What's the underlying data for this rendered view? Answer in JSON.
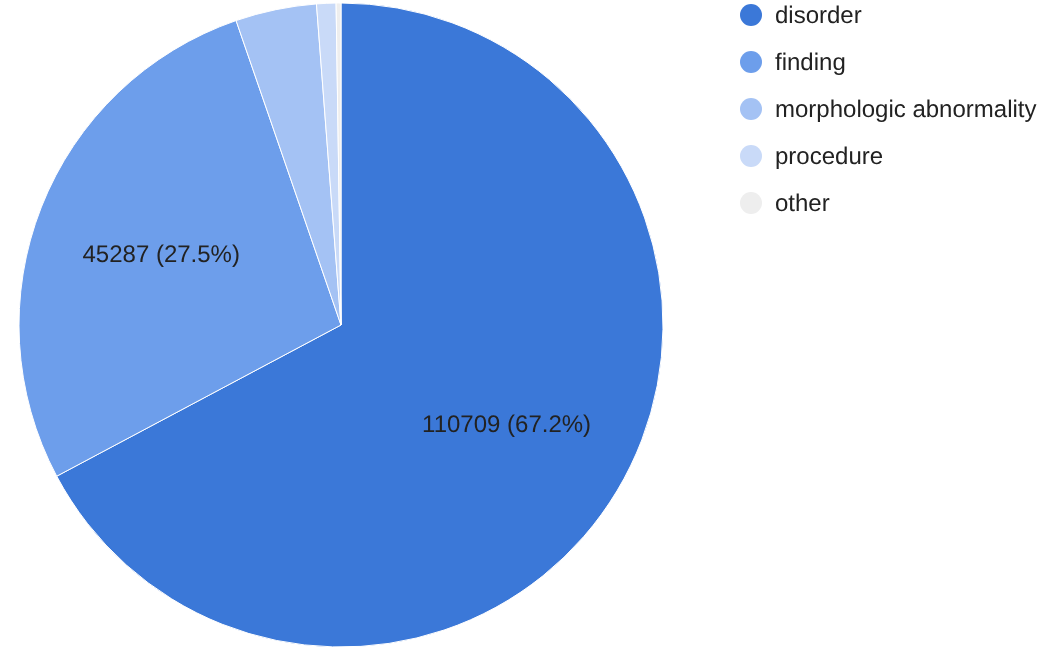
{
  "chart_data": {
    "type": "pie",
    "categories": [
      "disorder",
      "finding",
      "morphologic abnormality",
      "procedure",
      "other"
    ],
    "values": [
      110709,
      45287,
      6700,
      1600,
      400
    ],
    "colors": [
      "#3b78d8",
      "#6d9eeb",
      "#a4c2f4",
      "#c9daf8",
      "#eeeeee"
    ],
    "value_labels": [
      "110709 (67.2%)",
      "45287 (27.5%)",
      null,
      null,
      null
    ],
    "legend": "right"
  }
}
